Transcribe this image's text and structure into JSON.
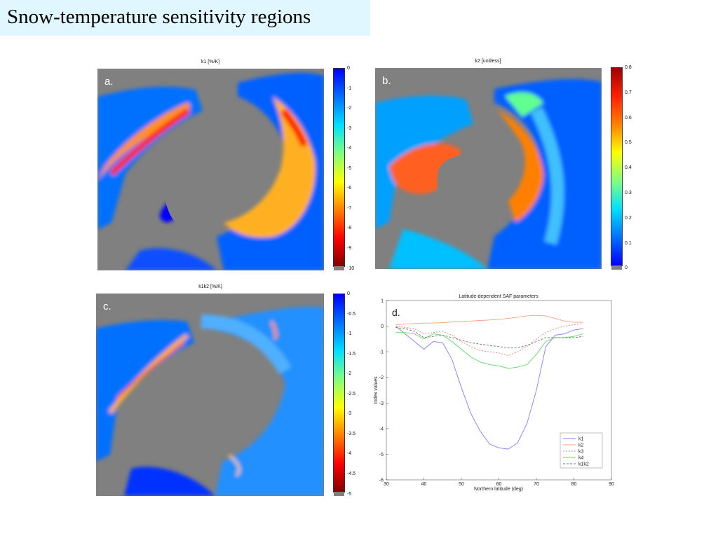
{
  "page_title": "Snow-temperature sensitivity regions",
  "maps": [
    {
      "id": "a",
      "letter": "a.",
      "title": "k1 [%/K]",
      "ticks": [
        "0",
        "-1",
        "-2",
        "-3",
        "-4",
        "-5",
        "-6",
        "-7",
        "-8",
        "-9",
        "-10"
      ]
    },
    {
      "id": "b",
      "letter": "b.",
      "title": "k2 [unitless]",
      "ticks": [
        "0.8",
        "0.7",
        "0.6",
        "0.5",
        "0.4",
        "0.3",
        "0.2",
        "0.1",
        "0"
      ]
    },
    {
      "id": "c",
      "letter": "c.",
      "title": "k1k2 [%/K]",
      "ticks": [
        "0",
        "-0.5",
        "-1",
        "-1.5",
        "-2",
        "-2.5",
        "-3",
        "-3.5",
        "-4",
        "-4.5",
        "-5"
      ]
    }
  ],
  "colormap": [
    "#00008f",
    "#0000ff",
    "#0080ff",
    "#00ffff",
    "#80ff80",
    "#ffff00",
    "#ff8000",
    "#ff0000",
    "#800000"
  ],
  "chart_data": {
    "type": "line",
    "letter": "d.",
    "title": "Latitude-dependent SAF parameters",
    "xlabel": "Northern latitude (deg)",
    "ylabel": "Index values",
    "xlim": [
      30,
      90
    ],
    "ylim": [
      -6,
      1
    ],
    "xticks": [
      "30",
      "40",
      "50",
      "60",
      "70",
      "80",
      "90"
    ],
    "yticks": [
      "1",
      "0",
      "-1",
      "-2",
      "-3",
      "-4",
      "-5",
      "-6"
    ],
    "legend_position": "bottom-right",
    "x": [
      32.5,
      35,
      37.5,
      40,
      42.5,
      45,
      47.5,
      50,
      52.5,
      55,
      57.5,
      60,
      62.5,
      65,
      67.5,
      70,
      72.5,
      75,
      77.5,
      80,
      82.5
    ],
    "series": [
      {
        "name": "k1",
        "color": "#7f7fff",
        "dash": "",
        "values": [
          0,
          -0.3,
          -0.6,
          -0.9,
          -0.6,
          -0.65,
          -1.3,
          -2.4,
          -3.4,
          -4.1,
          -4.6,
          -4.75,
          -4.8,
          -4.55,
          -3.8,
          -2.5,
          -0.8,
          -0.35,
          -0.3,
          -0.15,
          -0.1
        ]
      },
      {
        "name": "k2",
        "color": "#ff9f80",
        "dash": "",
        "values": [
          0.05,
          0.08,
          0.1,
          0.12,
          0.12,
          0.14,
          0.16,
          0.18,
          0.2,
          0.22,
          0.24,
          0.26,
          0.3,
          0.35,
          0.4,
          0.42,
          0.4,
          0.3,
          0.2,
          0.15,
          0.15
        ]
      },
      {
        "name": "k3",
        "color": "#e08080",
        "dash": "2,2",
        "values": [
          0,
          -0.05,
          -0.1,
          -0.3,
          -0.25,
          -0.2,
          -0.35,
          -0.6,
          -0.8,
          -0.95,
          -1.0,
          -1.05,
          -1.15,
          -1.0,
          -0.8,
          -0.5,
          -0.25,
          -0.1,
          0,
          0.05,
          0.1
        ]
      },
      {
        "name": "k4",
        "color": "#60dd60",
        "dash": "",
        "values": [
          -0.25,
          -0.25,
          -0.3,
          -0.5,
          -0.3,
          -0.35,
          -0.6,
          -0.9,
          -1.2,
          -1.4,
          -1.5,
          -1.55,
          -1.65,
          -1.6,
          -1.5,
          -1.1,
          -0.6,
          -0.45,
          -0.45,
          -0.4,
          -0.3
        ]
      },
      {
        "name": "k1k2",
        "color": "#707070",
        "dash": "3,2",
        "values": [
          -0.05,
          -0.1,
          -0.2,
          -0.45,
          -0.4,
          -0.35,
          -0.45,
          -0.55,
          -0.65,
          -0.7,
          -0.75,
          -0.8,
          -0.85,
          -0.85,
          -0.75,
          -0.6,
          -0.45,
          -0.45,
          -0.45,
          -0.45,
          -0.4
        ]
      }
    ]
  }
}
